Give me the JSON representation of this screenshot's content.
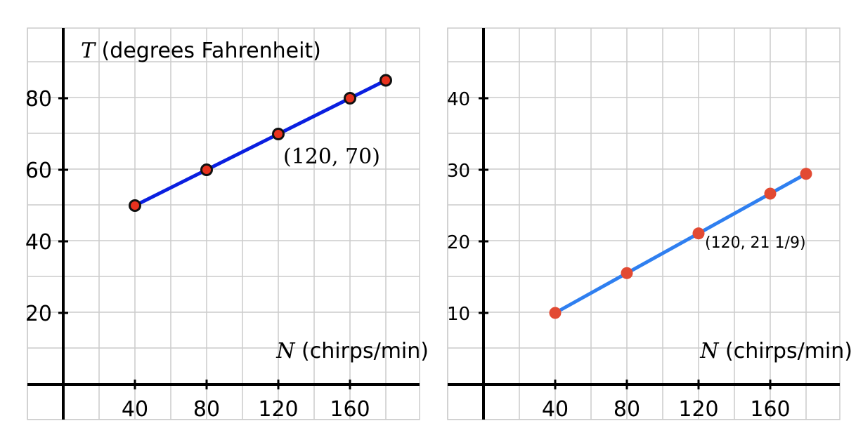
{
  "chart_data": [
    {
      "type": "line",
      "y_axis_title": {
        "var": "T",
        "text": " (degrees Fahrenheit)"
      },
      "x_axis_title": {
        "var": "N",
        "text": " (chirps/min)"
      },
      "x_ticks": [
        "40",
        "80",
        "120",
        "160"
      ],
      "y_ticks": [
        "20",
        "40",
        "60",
        "80"
      ],
      "xlim": [
        -20,
        200
      ],
      "ylim": [
        -10,
        100
      ],
      "grid": true,
      "series": [
        {
          "x": [
            40,
            80,
            120,
            160,
            180
          ],
          "y": [
            50,
            60,
            70,
            80,
            85
          ],
          "line_color": "#0a1fe0",
          "marker_color": "#e8321e"
        }
      ],
      "annotation": {
        "text": "(120, 70)",
        "x": 120,
        "y": 70
      }
    },
    {
      "type": "line",
      "x_axis_title": {
        "var": "N",
        "text": " (chirps/min)"
      },
      "x_ticks": [
        "40",
        "80",
        "120",
        "160"
      ],
      "y_ticks": [
        "10",
        "20",
        "30",
        "40"
      ],
      "xlim": [
        -20,
        200
      ],
      "ylim": [
        -5,
        50
      ],
      "grid": true,
      "series": [
        {
          "x": [
            40,
            80,
            120,
            160,
            180
          ],
          "y": [
            10,
            15.56,
            21.11,
            26.67,
            29.44
          ],
          "line_color": "#2f7ff0",
          "marker_color": "#e24a33"
        }
      ],
      "annotation": {
        "text": "(120, 21 1/9)",
        "x": 120,
        "y": 21.11
      }
    }
  ],
  "colors": {
    "grid": "#cccccc",
    "axis": "#000000"
  }
}
